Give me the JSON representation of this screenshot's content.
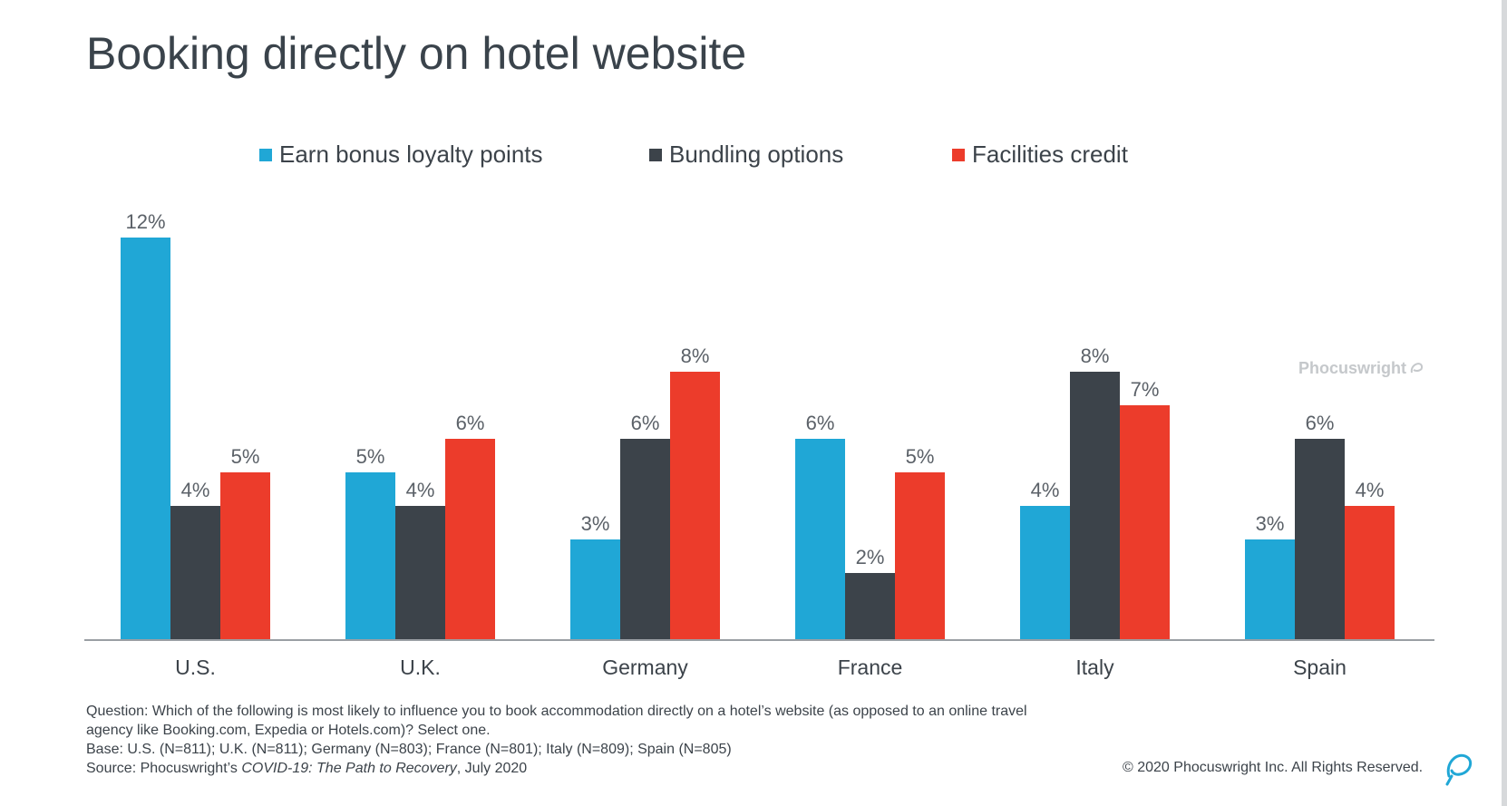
{
  "title": "Booking directly on hotel website",
  "colors": {
    "loyalty": "#20a7d6",
    "bundling": "#3c434a",
    "facilities": "#ec3c2b",
    "axis": "#9a9fa4"
  },
  "chart_data": {
    "type": "bar",
    "categories": [
      "U.S.",
      "U.K.",
      "Germany",
      "France",
      "Italy",
      "Spain"
    ],
    "series": [
      {
        "name": "Earn bonus loyalty points",
        "values": [
          12,
          5,
          3,
          6,
          4,
          3
        ],
        "labels": [
          "12%",
          "5%",
          "3%",
          "6%",
          "4%",
          "3%"
        ]
      },
      {
        "name": "Bundling options",
        "values": [
          4,
          4,
          6,
          2,
          8,
          6
        ],
        "labels": [
          "4%",
          "4%",
          "6%",
          "2%",
          "8%",
          "6%"
        ]
      },
      {
        "name": "Facilities credit",
        "values": [
          5,
          6,
          8,
          5,
          7,
          4
        ],
        "labels": [
          "5%",
          "6%",
          "8%",
          "5%",
          "7%",
          "4%"
        ]
      }
    ],
    "legend_position": "top",
    "grid": false
  },
  "watermark": "Phocuswright",
  "footnotes": {
    "question_line1": "Question: Which of the following is most likely to influence you to book accommodation directly on a hotel’s website (as opposed to an online travel",
    "question_line2": "agency like Booking.com, Expedia or Hotels.com)? Select one.",
    "base": "Base: U.S. (N=811); U.K. (N=811); Germany (N=803); France (N=801); Italy (N=809); Spain (N=805)",
    "source_prefix": "Source: Phocuswright’s ",
    "source_title": "COVID-19: The Path to Recovery",
    "source_suffix": ", July 2020"
  },
  "copyright": "© 2020 Phocuswright Inc. All Rights Reserved."
}
